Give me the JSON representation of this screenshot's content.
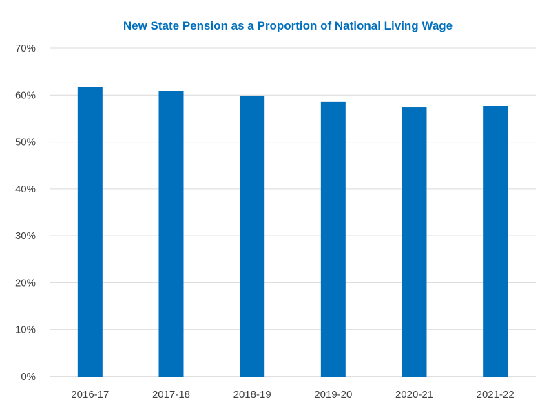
{
  "chart_data": {
    "type": "bar",
    "title": "New State Pension as a Proportion of National Living Wage",
    "xlabel": "",
    "ylabel": "",
    "categories": [
      "2016-17",
      "2017-18",
      "2018-19",
      "2019-20",
      "2020-21",
      "2021-22"
    ],
    "values": [
      61.8,
      60.8,
      59.9,
      58.6,
      57.4,
      57.6
    ],
    "ylim": [
      0,
      70
    ],
    "yticks": [
      0,
      10,
      20,
      30,
      40,
      50,
      60,
      70
    ],
    "ytick_labels": [
      "0%",
      "10%",
      "20%",
      "30%",
      "40%",
      "50%",
      "60%",
      "70%"
    ],
    "grid": true,
    "legend": "none",
    "bar_color": "#0070bd",
    "title_color": "#0070bd"
  }
}
